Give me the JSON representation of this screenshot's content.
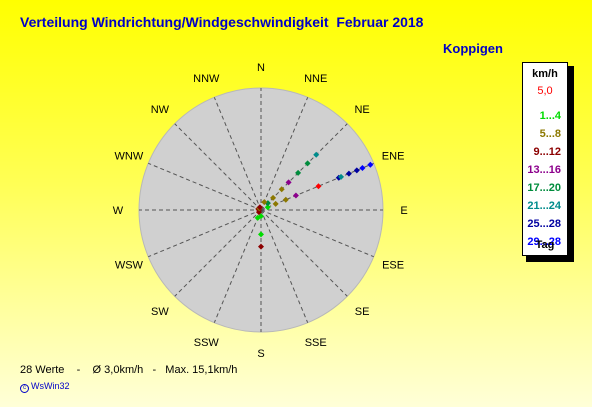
{
  "title": "Verteilung Windrichtung/Windgeschwindigkeit  Februar 2018",
  "location": "Koppigen",
  "footer": "28 Werte    -    Ø 3,0km/h   -   Max. 15,1km/h",
  "credit": "WsWin32",
  "legend": {
    "unit": "km/h",
    "max_label": "5,0",
    "bins": [
      {
        "label": "1...4",
        "color": "#00dc00"
      },
      {
        "label": "5...8",
        "color": "#8c7800"
      },
      {
        "label": "9...12",
        "color": "#8c0000"
      },
      {
        "label": "13...16",
        "color": "#8c008c"
      },
      {
        "label": "17...20",
        "color": "#008c3c"
      },
      {
        "label": "21...24",
        "color": "#008c8c"
      },
      {
        "label": "25...28",
        "color": "#0000a0"
      },
      {
        "label": "29...28",
        "color": "#0000ff"
      }
    ],
    "footer": "Tag"
  },
  "chart_data": {
    "type": "polar-scatter",
    "title": "Verteilung Windrichtung/Windgeschwindigkeit  Februar 2018",
    "directions": [
      "N",
      "NNE",
      "NE",
      "ENE",
      "E",
      "ESE",
      "SE",
      "SSE",
      "S",
      "SSW",
      "SW",
      "WSW",
      "W",
      "WNW",
      "NW",
      "NNW"
    ],
    "max_value": 5.0,
    "unit": "km/h",
    "grid": "dashed radial lines",
    "series": [
      {
        "direction_deg": 67.5,
        "points": [
          {
            "r": 0.3,
            "color": "#00dc00"
          },
          {
            "r": 0.65,
            "color": "#8c7800"
          },
          {
            "r": 1.1,
            "color": "#8c7800"
          },
          {
            "r": 1.55,
            "color": "#8c008c"
          },
          {
            "r": 2.55,
            "color": "#ff0000"
          },
          {
            "r": 3.45,
            "color": "#0000a0"
          },
          {
            "r": 3.55,
            "color": "#008c8c"
          },
          {
            "r": 3.9,
            "color": "#0000a0"
          },
          {
            "r": 4.25,
            "color": "#0000a0"
          },
          {
            "r": 4.5,
            "color": "#0000ff"
          },
          {
            "r": 4.85,
            "color": "#0000ff"
          }
        ]
      },
      {
        "direction_deg": 45,
        "points": [
          {
            "r": 0.4,
            "color": "#008c3c"
          },
          {
            "r": 0.7,
            "color": "#8c7800"
          },
          {
            "r": 1.2,
            "color": "#8c7800"
          },
          {
            "r": 1.6,
            "color": "#8c008c"
          },
          {
            "r": 2.15,
            "color": "#008c3c"
          },
          {
            "r": 2.7,
            "color": "#008c3c"
          },
          {
            "r": 3.2,
            "color": "#008c8c"
          }
        ]
      },
      {
        "direction_deg": 22.5,
        "points": [
          {
            "r": 0.35,
            "color": "#8c7800"
          }
        ]
      },
      {
        "direction_deg": 180,
        "points": [
          {
            "r": 0.25,
            "color": "#00dc00"
          },
          {
            "r": 1.0,
            "color": "#00dc00"
          },
          {
            "r": 1.5,
            "color": "#8c0000"
          }
        ]
      },
      {
        "direction_deg": 202.5,
        "points": [
          {
            "r": 0.35,
            "color": "#00dc00"
          }
        ]
      },
      {
        "direction_deg": 225,
        "points": [
          {
            "r": 0.12,
            "color": "#8c0000"
          }
        ]
      },
      {
        "direction_deg": 270,
        "points": [
          {
            "r": 0.08,
            "color": "#8c0000"
          }
        ]
      },
      {
        "direction_deg": 292.5,
        "points": [
          {
            "r": 0.12,
            "color": "#8c0000"
          }
        ]
      },
      {
        "direction_deg": 315,
        "points": [
          {
            "r": 0.1,
            "color": "#8c7800"
          }
        ]
      },
      {
        "direction_deg": 337.5,
        "points": [
          {
            "r": 0.12,
            "color": "#8c0000"
          }
        ]
      }
    ]
  }
}
